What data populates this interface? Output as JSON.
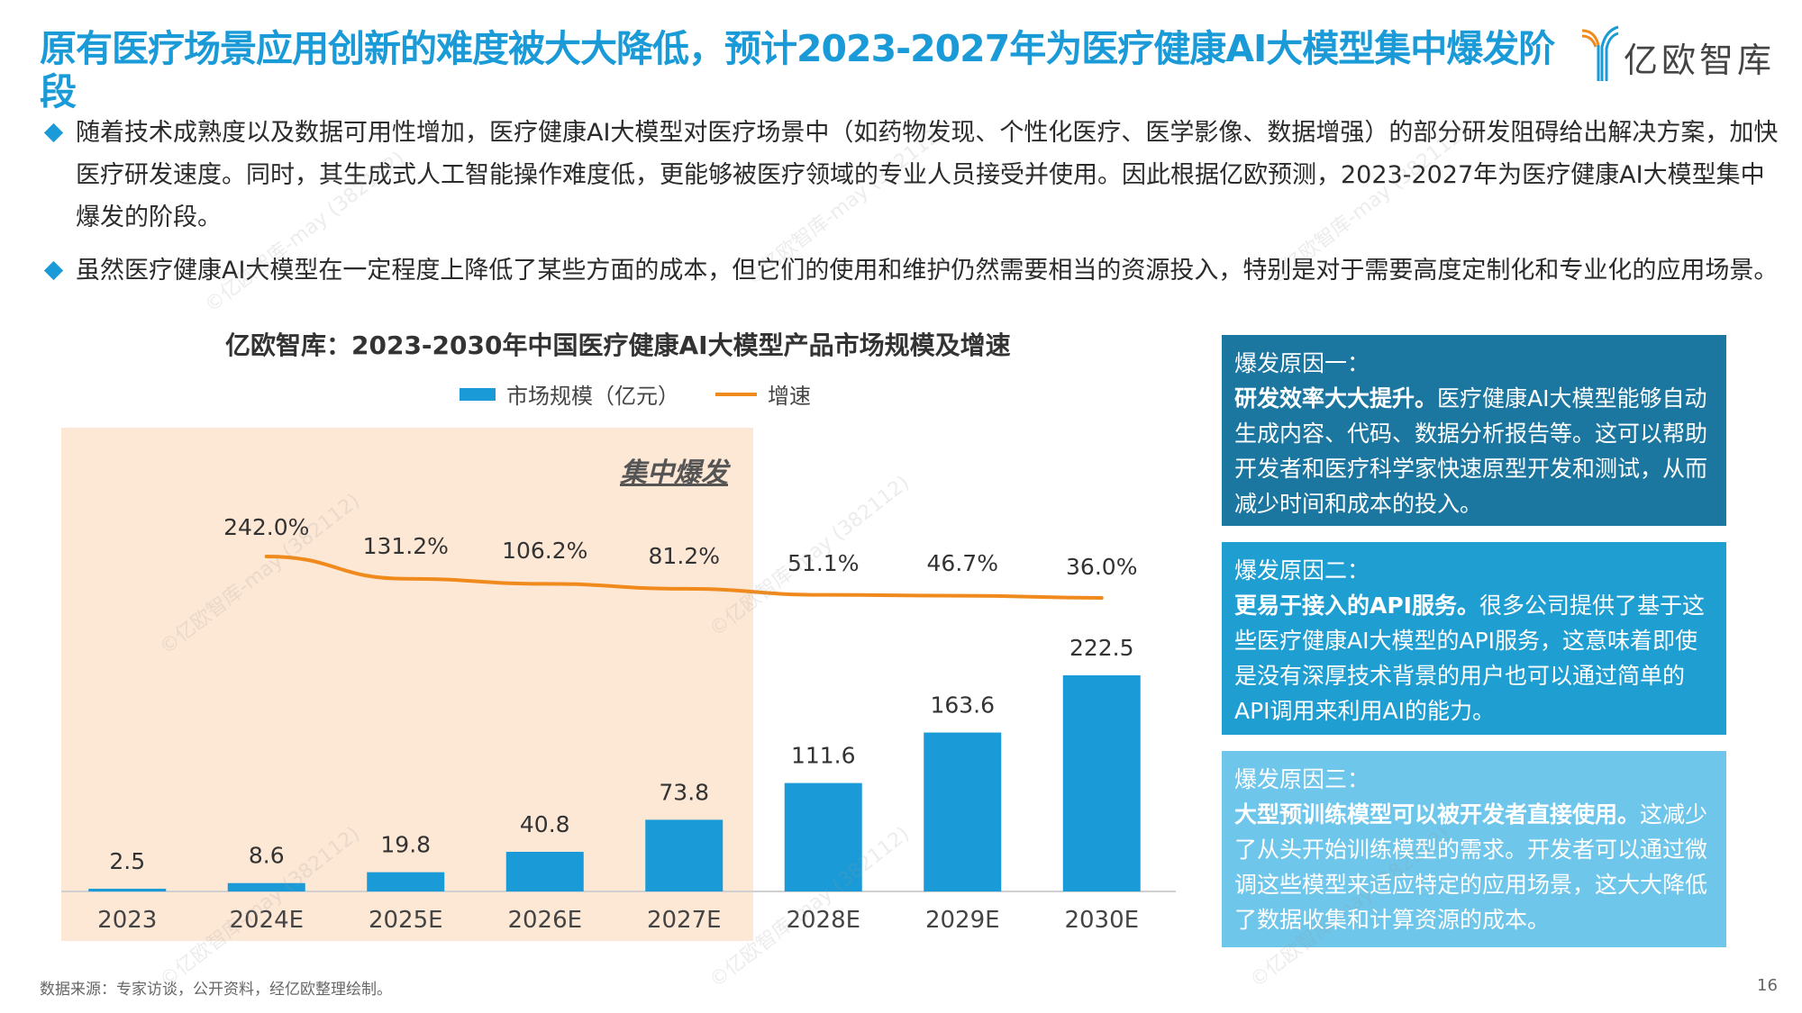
{
  "header": {
    "title": "原有医疗场景应用创新的难度被大大降低，预计2023-2027年为医疗健康AI大模型集中爆发阶段",
    "logo_text": "亿欧智库"
  },
  "bullets": [
    "随着技术成熟度以及数据可用性增加，医疗健康AI大模型对医疗场景中（如药物发现、个性化医疗、医学影像、数据增强）的部分研发阻碍给出解决方案，加快医疗研发速度。同时，其生成式人工智能操作难度低，更能够被医疗领域的专业人员接受并使用。因此根据亿欧预测，2023-2027年为医疗健康AI大模型集中爆发的阶段。",
    "虽然医疗健康AI大模型在一定程度上降低了某些方面的成本，但它们的使用和维护仍然需要相当的资源投入，特别是对于需要高度定制化和专业化的应用场景。"
  ],
  "chart_data": {
    "type": "bar",
    "title": "亿欧智库：2023-2030年中国医疗健康AI大模型产品市场规模及增速",
    "categories": [
      "2023",
      "2024E",
      "2025E",
      "2026E",
      "2027E",
      "2028E",
      "2029E",
      "2030E"
    ],
    "series": [
      {
        "name": "市场规模（亿元）",
        "type": "bar",
        "color": "#1a9bd7",
        "values": [
          2.5,
          8.6,
          19.8,
          40.8,
          73.8,
          111.6,
          163.6,
          222.5
        ],
        "labels": [
          "2.5",
          "8.6",
          "19.8",
          "40.8",
          "73.8",
          "111.6",
          "163.6",
          "222.5"
        ]
      },
      {
        "name": "增速",
        "type": "line",
        "color": "#f08a1d",
        "values": [
          null,
          242.0,
          131.2,
          106.2,
          81.2,
          51.1,
          46.7,
          36.0
        ],
        "labels": [
          "",
          "242.0%",
          "131.2%",
          "106.2%",
          "81.2%",
          "51.1%",
          "46.7%",
          "36.0%"
        ]
      }
    ],
    "legend": [
      "市场规模（亿元）",
      "增速"
    ],
    "legend_position": "top-center",
    "highlight": {
      "label": "集中爆发",
      "from": "2023",
      "to": "2027E",
      "color": "#fde8d6"
    },
    "xlabel": "",
    "ylabel": "",
    "grid": false
  },
  "cards": [
    {
      "heading": "爆发原因一：",
      "bold": "研发效率大大提升。",
      "text": "医疗健康AI大模型能够自动生成内容、代码、数据分析报告等。这可以帮助开发者和医疗科学家快速原型开发和测试，从而减少时间和成本的投入。"
    },
    {
      "heading": "爆发原因二：",
      "bold": "更易于接入的API服务。",
      "text": "很多公司提供了基于这些医疗健康AI大模型的API服务，这意味着即使是没有深厚技术背景的用户也可以通过简单的API调用来利用AI的能力。"
    },
    {
      "heading": "爆发原因三：",
      "bold": "大型预训练模型可以被开发者直接使用。",
      "text": "这减少了从头开始训练模型的需求。开发者可以通过微调这些模型来适应特定的应用场景，这大大降低了数据收集和计算资源的成本。"
    }
  ],
  "footer": {
    "source": "数据来源：专家访谈，公开资料，经亿欧整理绘制。",
    "page_number": "16"
  },
  "watermark": "©亿欧智库-may (382112)"
}
